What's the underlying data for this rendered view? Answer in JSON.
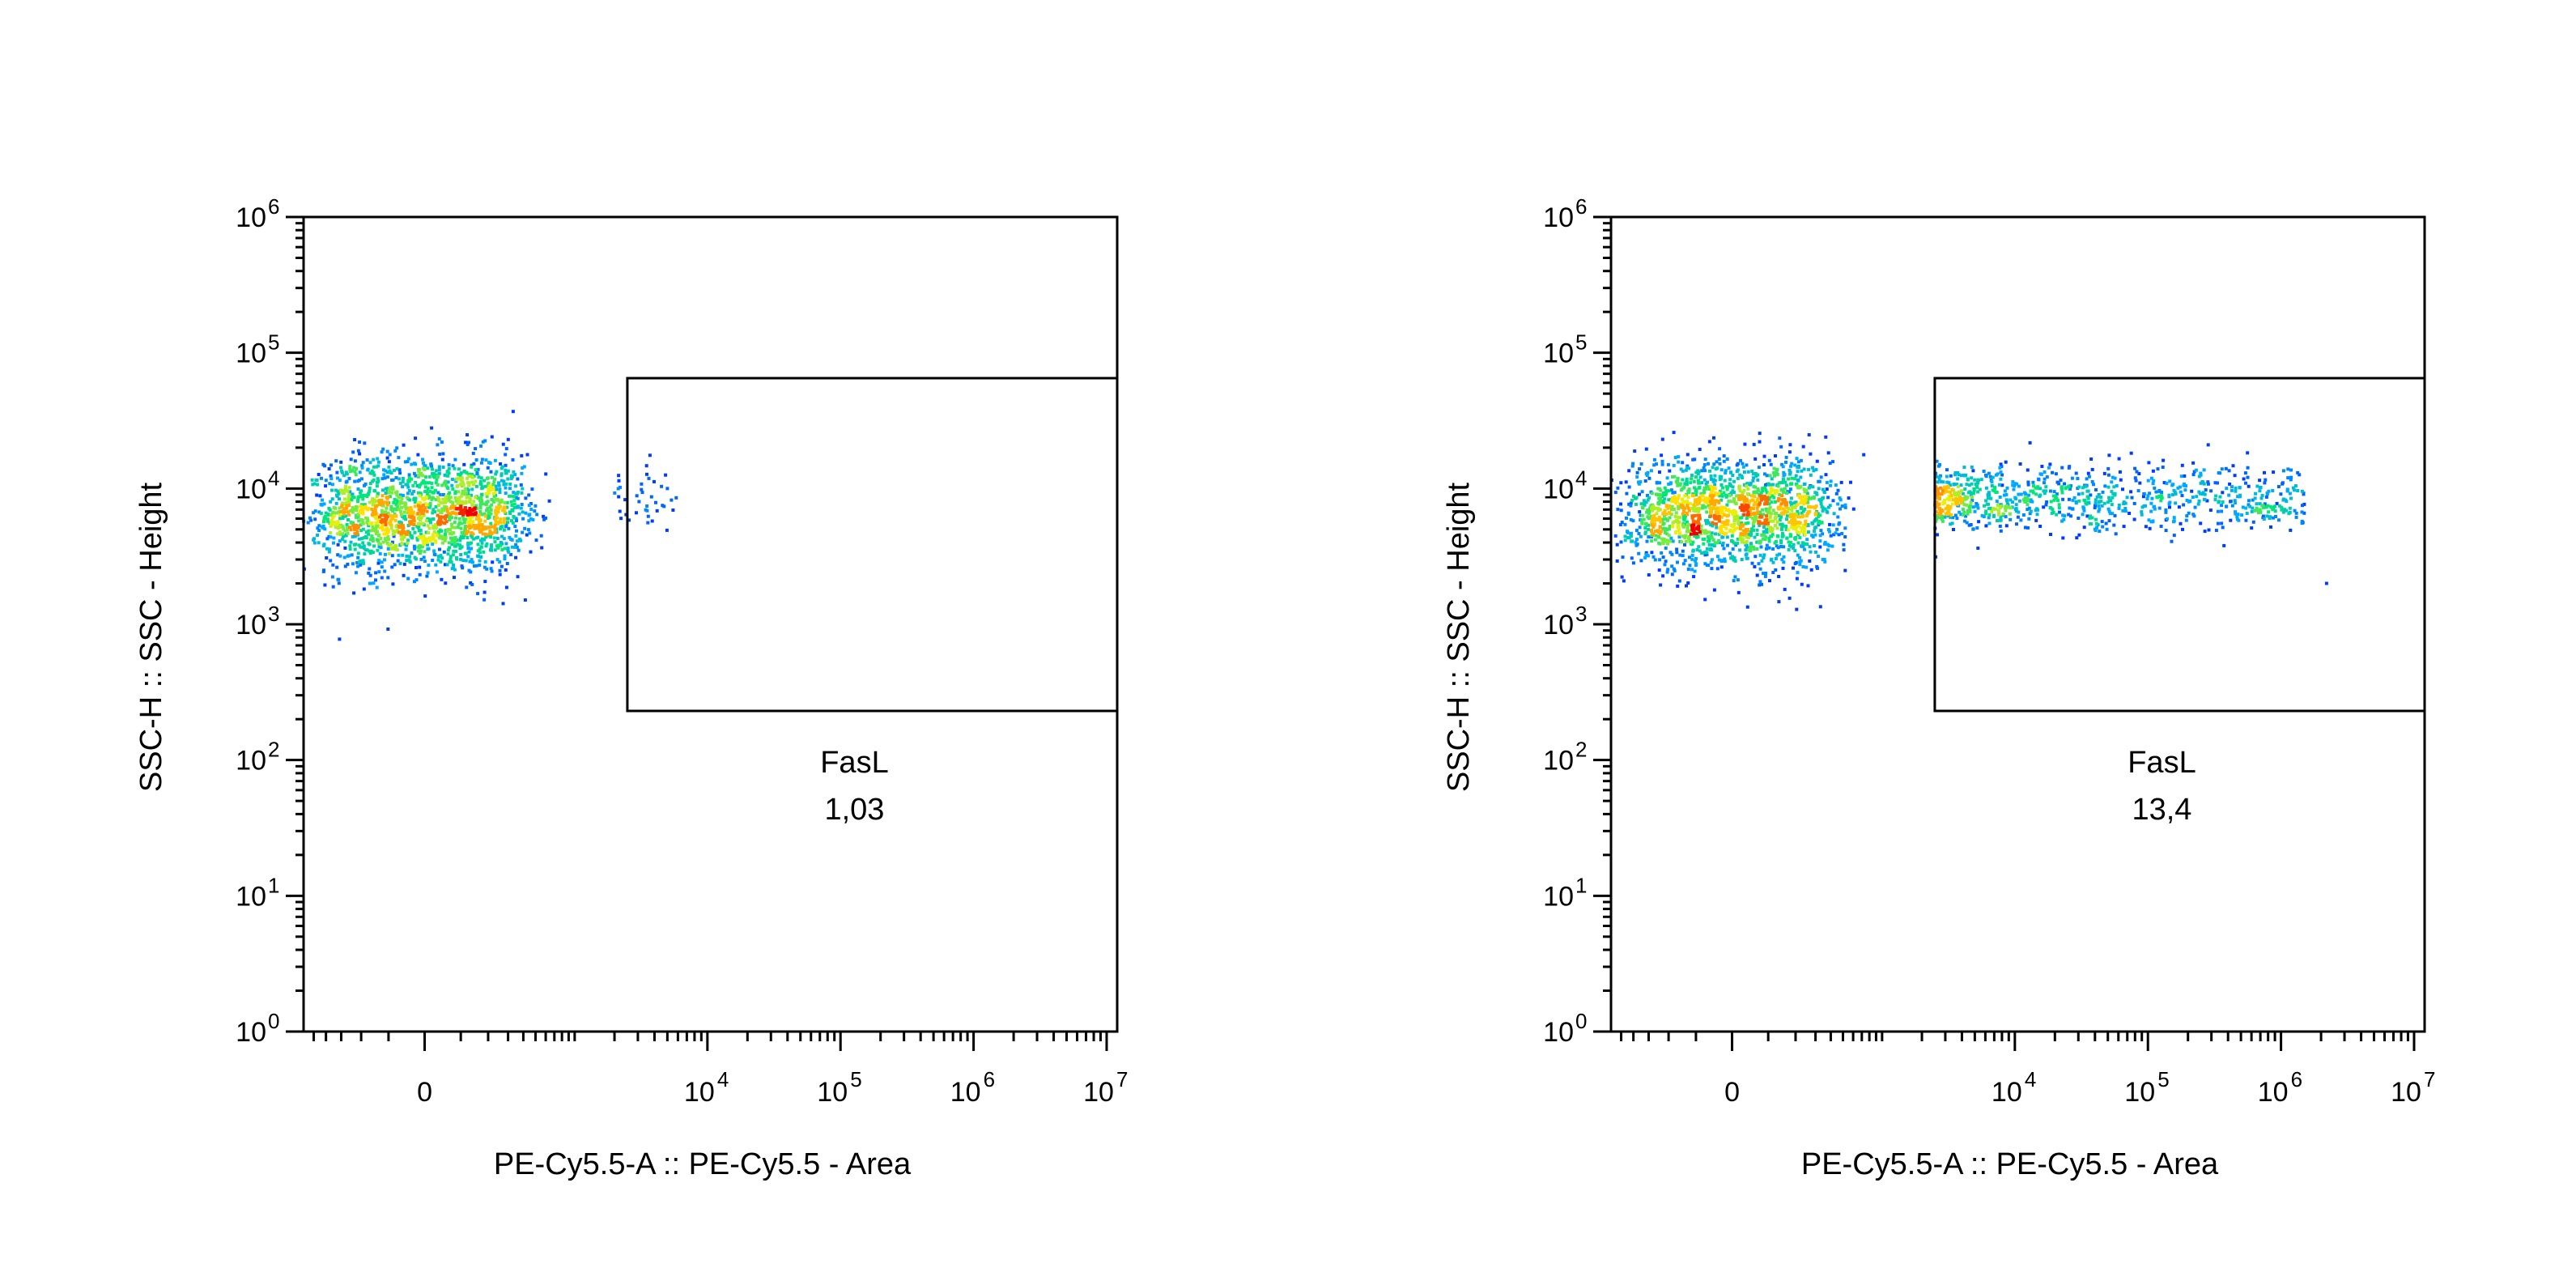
{
  "chart_data": [
    {
      "type": "scatter",
      "subtype": "flow-cytometry-density-dot-plot",
      "xlabel": "PE-Cy5.5-A :: PE-Cy5.5 - Area",
      "ylabel": "SSC-H :: SSC - Height",
      "x_scale": "biexponential",
      "y_scale": "log",
      "xlim": [
        -600,
        12000000
      ],
      "ylim": [
        1,
        1000000
      ],
      "x_ticks": [
        {
          "value": 0,
          "base": "0",
          "exp": ""
        },
        {
          "value": 10000,
          "base": "10",
          "exp": "4"
        },
        {
          "value": 100000,
          "base": "10",
          "exp": "5"
        },
        {
          "value": 1000000,
          "base": "10",
          "exp": "6"
        },
        {
          "value": 10000000,
          "base": "10",
          "exp": "7"
        }
      ],
      "y_ticks": [
        {
          "value": 1,
          "base": "10",
          "exp": "0"
        },
        {
          "value": 10,
          "base": "10",
          "exp": "1"
        },
        {
          "value": 100,
          "base": "10",
          "exp": "2"
        },
        {
          "value": 1000,
          "base": "10",
          "exp": "3"
        },
        {
          "value": 10000,
          "base": "10",
          "exp": "4"
        },
        {
          "value": 100000,
          "base": "10",
          "exp": "5"
        },
        {
          "value": 1000000,
          "base": "10",
          "exp": "6"
        }
      ],
      "gate": {
        "name": "FasL",
        "value": "1,03",
        "x_range": [
          2500,
          12000000
        ],
        "y_range": [
          230,
          65000
        ]
      },
      "populations": [
        {
          "x_center": 0,
          "y_center": 6500,
          "x_spread": 200,
          "y_spread_decades": 0.22,
          "count": 1800
        },
        {
          "x_min": 2000,
          "x_max": 6000,
          "y_center": 8000,
          "count": 40
        }
      ],
      "grid": false,
      "legend": "none"
    },
    {
      "type": "scatter",
      "subtype": "flow-cytometry-density-dot-plot",
      "xlabel": "PE-Cy5.5-A :: PE-Cy5.5 - Area",
      "ylabel": "SSC-H :: SSC - Height",
      "x_scale": "biexponential",
      "y_scale": "log",
      "xlim": [
        -600,
        12000000
      ],
      "ylim": [
        1,
        1000000
      ],
      "x_ticks": [
        {
          "value": 0,
          "base": "0",
          "exp": ""
        },
        {
          "value": 10000,
          "base": "10",
          "exp": "4"
        },
        {
          "value": 100000,
          "base": "10",
          "exp": "5"
        },
        {
          "value": 1000000,
          "base": "10",
          "exp": "6"
        },
        {
          "value": 10000000,
          "base": "10",
          "exp": "7"
        }
      ],
      "y_ticks": [
        {
          "value": 1,
          "base": "10",
          "exp": "0"
        },
        {
          "value": 10,
          "base": "10",
          "exp": "1"
        },
        {
          "value": 100,
          "base": "10",
          "exp": "2"
        },
        {
          "value": 1000,
          "base": "10",
          "exp": "3"
        },
        {
          "value": 10000,
          "base": "10",
          "exp": "4"
        },
        {
          "value": 100000,
          "base": "10",
          "exp": "5"
        },
        {
          "value": 1000000,
          "base": "10",
          "exp": "6"
        }
      ],
      "gate": {
        "name": "FasL",
        "value": "13,4",
        "x_range": [
          2500,
          12000000
        ],
        "y_range": [
          230,
          65000
        ]
      },
      "populations": [
        {
          "x_center": 0,
          "y_center": 6500,
          "x_spread": 200,
          "y_spread_decades": 0.2,
          "count": 1700
        },
        {
          "x_min": 2500,
          "x_max": 1500000,
          "y_center": 8500,
          "count": 900
        },
        {
          "x": 2200000,
          "y": 2000,
          "count": 1
        }
      ],
      "grid": false,
      "legend": "none"
    }
  ]
}
